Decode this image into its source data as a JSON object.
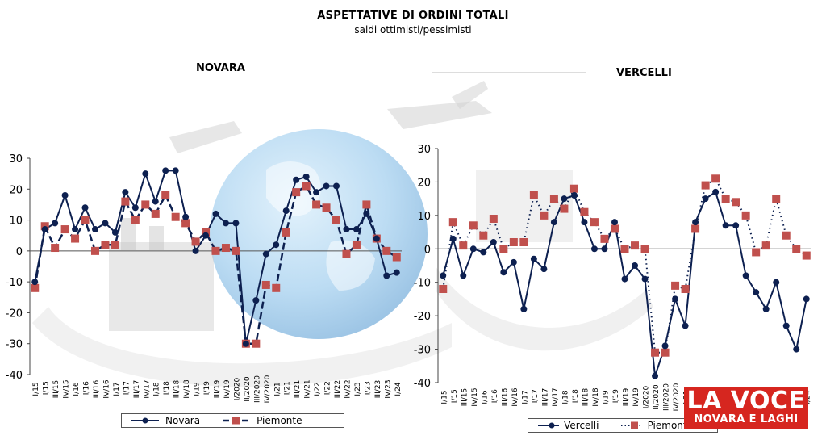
{
  "header": {
    "title": "ASPETTATIVE DI ORDINI TOTALI",
    "subtitle": "saldi ottimisti/pessimisti"
  },
  "logo": {
    "line1": "LA VOCE",
    "line2": "NOVARA E LAGHI"
  },
  "colors": {
    "primary_series": "#0d2050",
    "secondary_series": "#c0504d",
    "logo_bg": "#d6261f"
  },
  "chart_data": [
    {
      "type": "line",
      "title": "NOVARA",
      "categories": [
        "I/15",
        "II/15",
        "III/15",
        "IV/15",
        "I/16",
        "II/16",
        "III/16",
        "IV/16",
        "I/17",
        "II/17",
        "III/17",
        "IV/17",
        "I/18",
        "II/18",
        "III/18",
        "IV/18",
        "I/19",
        "II/19",
        "III/19",
        "IV/19",
        "I/2020",
        "II/2020",
        "III/2020",
        "IV/2020",
        "I/21",
        "II/21",
        "III/21",
        "IV/21",
        "I/22",
        "II/22",
        "III/22",
        "IV/22",
        "I/23",
        "II/23",
        "III/23",
        "IV/23",
        "I/24"
      ],
      "ylim": [
        -40,
        30
      ],
      "yticks": [
        -40,
        -30,
        -20,
        -10,
        0,
        10,
        20,
        30
      ],
      "series": [
        {
          "name": "Novara",
          "values": [
            -10,
            7,
            9,
            18,
            7,
            14,
            7,
            9,
            6,
            19,
            14,
            25,
            16,
            26,
            26,
            11,
            0,
            5,
            12,
            9,
            9,
            -30,
            -16,
            -1,
            2,
            13,
            23,
            24,
            19,
            21,
            21,
            7,
            7,
            12,
            4,
            -8,
            -7
          ]
        },
        {
          "name": "Piemonte",
          "values": [
            -12,
            8,
            1,
            7,
            4,
            10,
            0,
            2,
            2,
            16,
            10,
            15,
            12,
            18,
            11,
            9,
            3,
            6,
            0,
            1,
            0,
            -30,
            -30,
            -11,
            -12,
            6,
            19,
            21,
            15,
            14,
            10,
            -1,
            2,
            15,
            4,
            0,
            -2
          ]
        }
      ]
    },
    {
      "type": "line",
      "title": "VERCELLI",
      "categories": [
        "I/15",
        "II/15",
        "III/15",
        "IV/15",
        "I/16",
        "II/16",
        "III/16",
        "IV/16",
        "I/17",
        "II/17",
        "III/17",
        "IV/17",
        "I/18",
        "II/18",
        "III/18",
        "IV/18",
        "I/19",
        "II/19",
        "III/19",
        "IV/19",
        "I/2020",
        "II/2020",
        "III/2020",
        "IV/2020",
        "I/21",
        "II/21",
        "III/21",
        "IV/21",
        "I/22",
        "II/22",
        "III/22",
        "IV/22",
        "I/23",
        "II/23",
        "III/23",
        "IV/23",
        "I/24"
      ],
      "ylim": [
        -40,
        30
      ],
      "yticks": [
        -40,
        -30,
        -20,
        -10,
        0,
        10,
        20,
        30
      ],
      "series": [
        {
          "name": "Vercelli",
          "values": [
            -8,
            3,
            -8,
            0,
            -1,
            2,
            -7,
            -4,
            -18,
            -3,
            -6,
            8,
            15,
            16,
            8,
            0,
            0,
            8,
            -9,
            -5,
            -9,
            -38,
            -29,
            -15,
            -23,
            8,
            15,
            17,
            7,
            7,
            -8,
            -13,
            -18,
            -10,
            -23,
            -30,
            -15
          ]
        },
        {
          "name": "Piemonte",
          "values": [
            -12,
            8,
            1,
            7,
            4,
            9,
            0,
            2,
            2,
            16,
            10,
            15,
            12,
            18,
            11,
            8,
            3,
            6,
            0,
            1,
            0,
            -31,
            -31,
            -11,
            -12,
            6,
            19,
            21,
            15,
            14,
            10,
            -1,
            1,
            15,
            4,
            0,
            -2
          ]
        }
      ]
    }
  ]
}
